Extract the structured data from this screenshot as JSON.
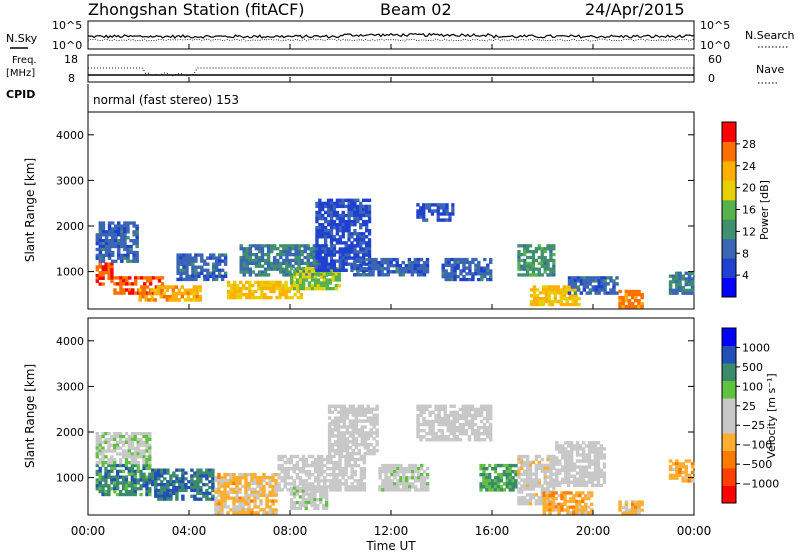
{
  "header": {
    "station": "Zhongshan Station (fitACF)",
    "beam": "Beam 02",
    "date": "24/Apr/2015"
  },
  "top_panels": {
    "nsky_label": "N.Sky",
    "nsearch_label": "N.Search",
    "freq_label_line1": "Freq.",
    "freq_label_line2": "[MHz]",
    "nave_label": "Nave",
    "cpid_label": "CPID",
    "cpid_text": "normal (fast stereo) 153",
    "noise_left_ticks": [
      "10^5",
      "10^0"
    ],
    "noise_right_ticks": [
      "10^5",
      "10^0"
    ],
    "freq_left_ticks": [
      "18",
      "8"
    ],
    "nave_right_ticks": [
      "60",
      "0"
    ]
  },
  "chart_data": [
    {
      "type": "heatmap",
      "title": "",
      "xlabel": "",
      "ylabel": "Slant Range [km]",
      "xlim": [
        0,
        24
      ],
      "ylim": [
        180,
        4500
      ],
      "x_ticks": [
        "00:00",
        "04:00",
        "08:00",
        "12:00",
        "16:00",
        "20:00",
        "00:00"
      ],
      "y_ticks": [
        1000,
        2000,
        3000,
        4000
      ],
      "colorbar": {
        "label": "Power [dB]",
        "ticks": [
          "28",
          "24",
          "20",
          "16",
          "12",
          "8",
          "4"
        ],
        "range": [
          0,
          30
        ],
        "colors": [
          "#0000ff",
          "#2040d0",
          "#3a66b4",
          "#408f6e",
          "#55b34a",
          "#e8d000",
          "#ffb000",
          "#ff7000",
          "#ff0000"
        ]
      },
      "echo_regions": [
        {
          "t0": 0.3,
          "t1": 1.0,
          "r0": 700,
          "r1": 1200,
          "level": 26
        },
        {
          "t0": 1.0,
          "t1": 3.0,
          "r0": 500,
          "r1": 900,
          "level": 26
        },
        {
          "t0": 0.3,
          "t1": 2.0,
          "r0": 1200,
          "r1": 2100,
          "level": 8
        },
        {
          "t0": 2.0,
          "t1": 4.5,
          "r0": 350,
          "r1": 700,
          "level": 22
        },
        {
          "t0": 3.5,
          "t1": 5.5,
          "r0": 800,
          "r1": 1400,
          "level": 8
        },
        {
          "t0": 5.5,
          "t1": 8.5,
          "r0": 400,
          "r1": 800,
          "level": 20
        },
        {
          "t0": 6.0,
          "t1": 9.5,
          "r0": 900,
          "r1": 1600,
          "level": 10
        },
        {
          "t0": 8.0,
          "t1": 10.0,
          "r0": 600,
          "r1": 1100,
          "level": 16
        },
        {
          "t0": 9.0,
          "t1": 11.2,
          "r0": 1000,
          "r1": 2600,
          "level": 6
        },
        {
          "t0": 10.5,
          "t1": 13.5,
          "r0": 900,
          "r1": 1300,
          "level": 8
        },
        {
          "t0": 13.0,
          "t1": 14.5,
          "r0": 2100,
          "r1": 2500,
          "level": 6
        },
        {
          "t0": 14.0,
          "t1": 16.0,
          "r0": 800,
          "r1": 1300,
          "level": 8
        },
        {
          "t0": 17.0,
          "t1": 18.5,
          "r0": 900,
          "r1": 1600,
          "level": 12
        },
        {
          "t0": 17.5,
          "t1": 19.5,
          "r0": 250,
          "r1": 700,
          "level": 20
        },
        {
          "t0": 19.0,
          "t1": 21.0,
          "r0": 500,
          "r1": 900,
          "level": 8
        },
        {
          "t0": 21.0,
          "t1": 22.0,
          "r0": 200,
          "r1": 600,
          "level": 24
        },
        {
          "t0": 23.0,
          "t1": 24.0,
          "r0": 500,
          "r1": 1000,
          "level": 10
        }
      ]
    },
    {
      "type": "heatmap",
      "title": "",
      "xlabel": "Time UT",
      "ylabel": "Slant Range [km]",
      "xlim": [
        0,
        24
      ],
      "ylim": [
        180,
        4500
      ],
      "x_ticks": [
        "00:00",
        "04:00",
        "08:00",
        "12:00",
        "16:00",
        "20:00",
        "00:00"
      ],
      "y_ticks": [
        1000,
        2000,
        3000,
        4000
      ],
      "colorbar": {
        "label": "Velocity [m s⁻¹]",
        "ticks": [
          "1000",
          "500",
          "100",
          "25",
          "−25",
          "−100",
          "−500",
          "−1000"
        ],
        "range": [
          -1200,
          1200
        ],
        "colors": [
          "#ff0000",
          "#ff4000",
          "#ff7a00",
          "#ffae30",
          "#c8c8c8",
          "#c8c8c8",
          "#60c040",
          "#3c8a6c",
          "#2050b8",
          "#0000ff"
        ]
      },
      "echo_regions": [
        {
          "t0": 0.3,
          "t1": 2.5,
          "r0": 600,
          "r1": 1300,
          "level": 600
        },
        {
          "t0": 0.3,
          "t1": 2.5,
          "r0": 1300,
          "r1": 2000,
          "level": 150
        },
        {
          "t0": 2.5,
          "t1": 5.0,
          "r0": 500,
          "r1": 1200,
          "level": 700
        },
        {
          "t0": 5.0,
          "t1": 7.5,
          "r0": 200,
          "r1": 1100,
          "level": -300
        },
        {
          "t0": 7.5,
          "t1": 11.0,
          "r0": 700,
          "r1": 1500,
          "level": 0
        },
        {
          "t0": 8.0,
          "t1": 9.5,
          "r0": 300,
          "r1": 800,
          "level": 120
        },
        {
          "t0": 9.5,
          "t1": 11.5,
          "r0": 1500,
          "r1": 2600,
          "level": 0
        },
        {
          "t0": 11.5,
          "t1": 13.5,
          "r0": 700,
          "r1": 1300,
          "level": 120
        },
        {
          "t0": 13.0,
          "t1": 16.0,
          "r0": 1800,
          "r1": 2600,
          "level": 0
        },
        {
          "t0": 15.5,
          "t1": 17.0,
          "r0": 700,
          "r1": 1300,
          "level": 500
        },
        {
          "t0": 17.0,
          "t1": 18.5,
          "r0": 400,
          "r1": 1500,
          "level": -80
        },
        {
          "t0": 18.0,
          "t1": 20.0,
          "r0": 200,
          "r1": 700,
          "level": -400
        },
        {
          "t0": 18.5,
          "t1": 20.5,
          "r0": 800,
          "r1": 1800,
          "level": 0
        },
        {
          "t0": 21.0,
          "t1": 22.0,
          "r0": 200,
          "r1": 500,
          "level": -300
        },
        {
          "t0": 23.0,
          "t1": 24.0,
          "r0": 900,
          "r1": 1400,
          "level": -400
        }
      ]
    }
  ]
}
